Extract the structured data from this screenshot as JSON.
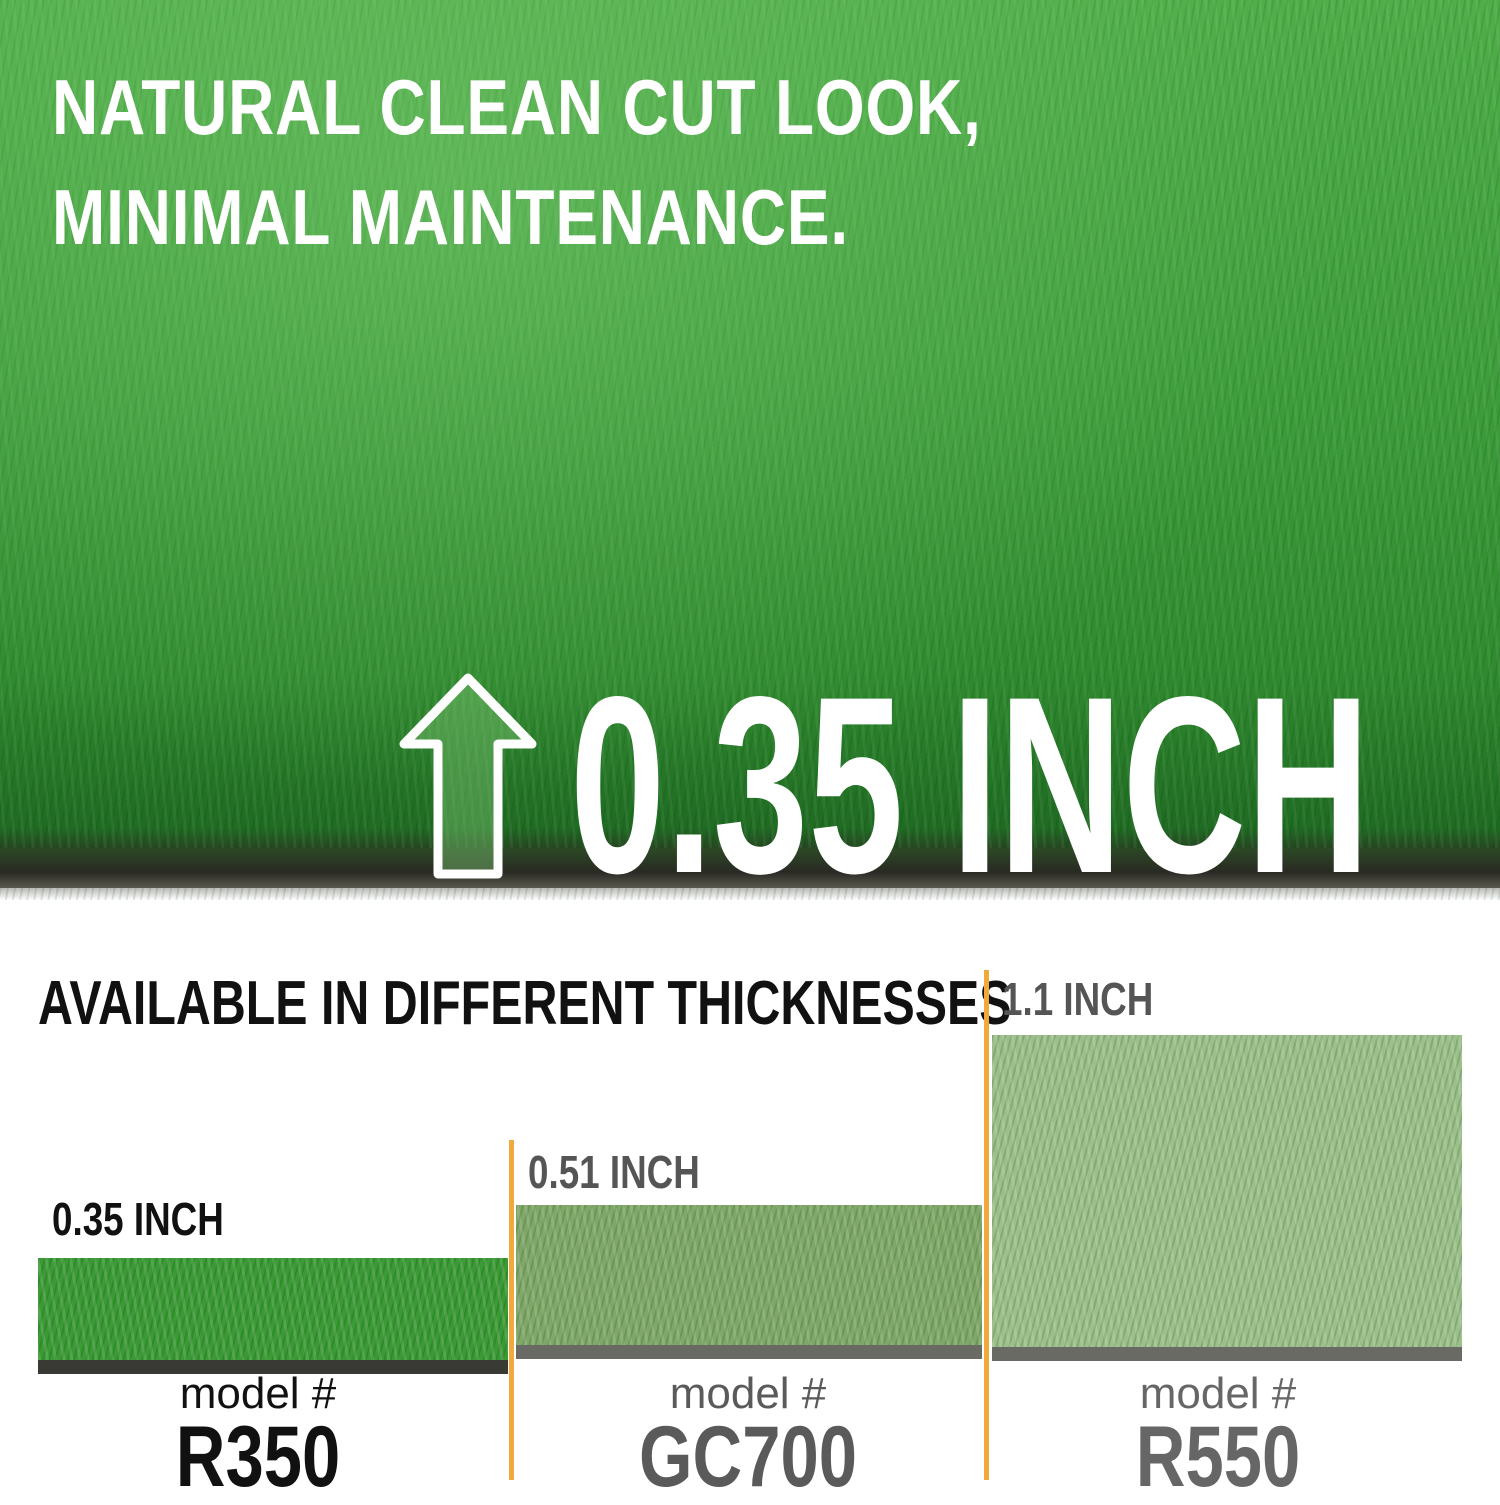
{
  "hero": {
    "headline_line1": "NATURAL CLEAN CUT LOOK,",
    "headline_line2": "MINIMAL MAINTENANCE.",
    "height_label": "0.35 INCH",
    "icon": "up-arrow-icon"
  },
  "comparison": {
    "title": "AVAILABLE IN DIFFERENT THICKNESSES",
    "accent_color": "#f0a93a",
    "products": [
      {
        "thickness": "0.35 INCH",
        "model_label": "model #",
        "model": "R350",
        "color": "#111111"
      },
      {
        "thickness": "0.51 INCH",
        "model_label": "model #",
        "model": "GC700",
        "color": "#5a5a5a"
      },
      {
        "thickness": "1.1 INCH",
        "model_label": "model #",
        "model": "R550",
        "color": "#666666"
      }
    ]
  }
}
